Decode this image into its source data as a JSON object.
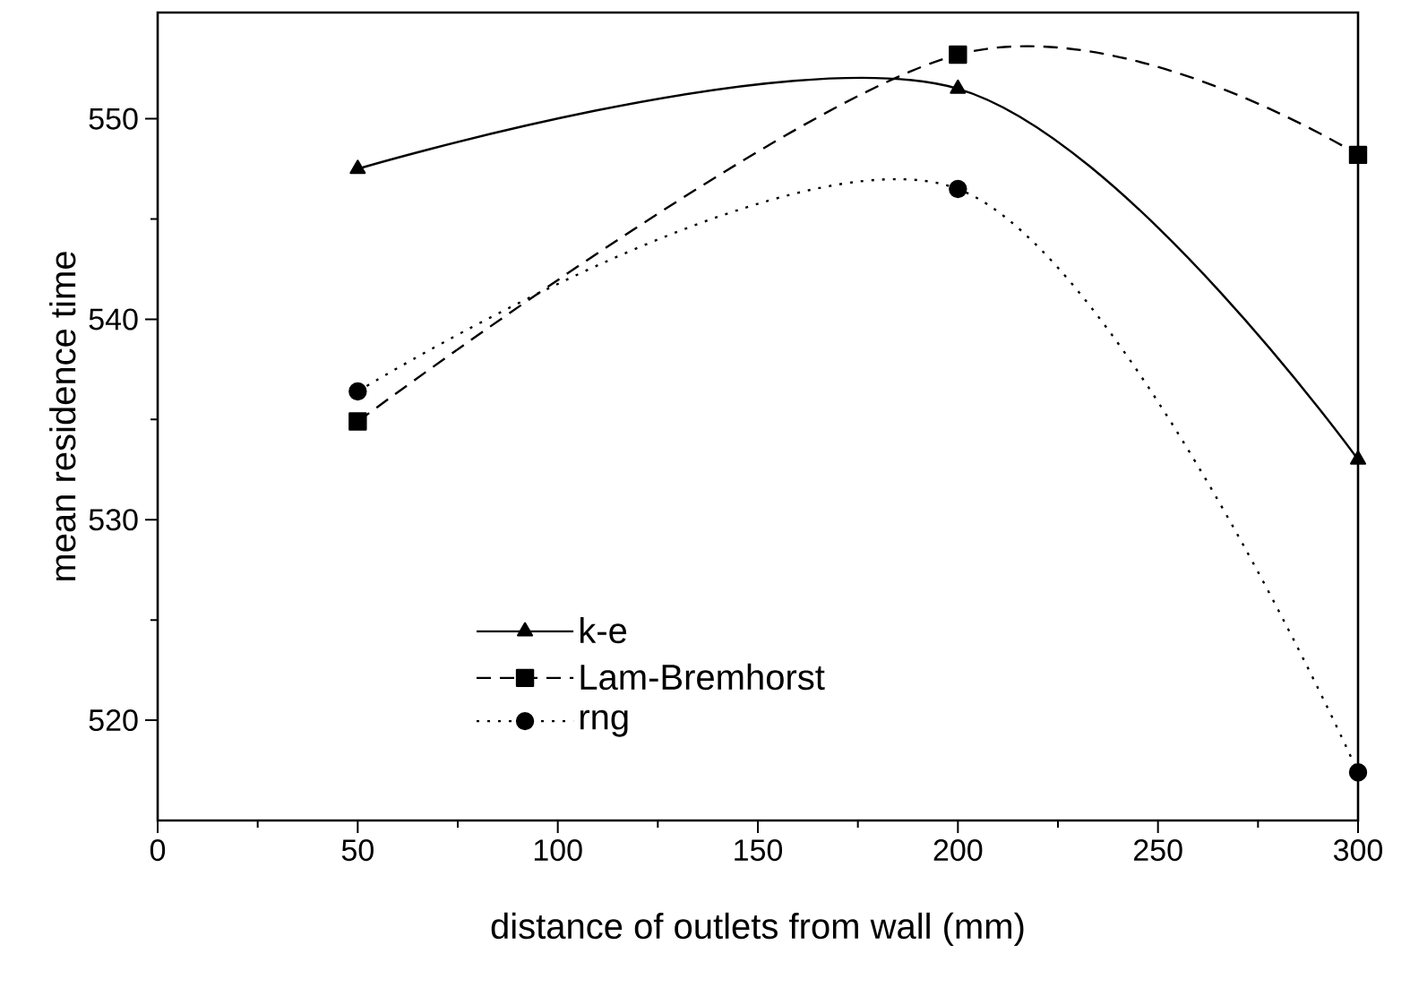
{
  "chart_data": {
    "type": "line",
    "xlabel": "distance of outlets from wall (mm)",
    "ylabel": "mean residence time",
    "x": [
      50,
      200,
      300
    ],
    "series": [
      {
        "name": "k-e",
        "color": "#000000",
        "values": [
          547.5,
          551.5,
          533.0
        ],
        "marker": "triangle",
        "line_style": "solid"
      },
      {
        "name": "Lam-Bremhorst",
        "color": "#000000",
        "values": [
          534.9,
          553.2,
          548.2
        ],
        "marker": "square",
        "line_style": "dashed"
      },
      {
        "name": "rng",
        "color": "#000000",
        "values": [
          536.4,
          546.5,
          517.4
        ],
        "marker": "circle",
        "line_style": "dotted"
      }
    ],
    "xlim": [
      0,
      300
    ],
    "ylim": [
      515,
      555.3
    ],
    "xticks": [
      0,
      50,
      100,
      150,
      200,
      250,
      300
    ],
    "yticks": [
      520,
      530,
      540,
      550
    ],
    "grid": false,
    "legend": "bottom left"
  }
}
